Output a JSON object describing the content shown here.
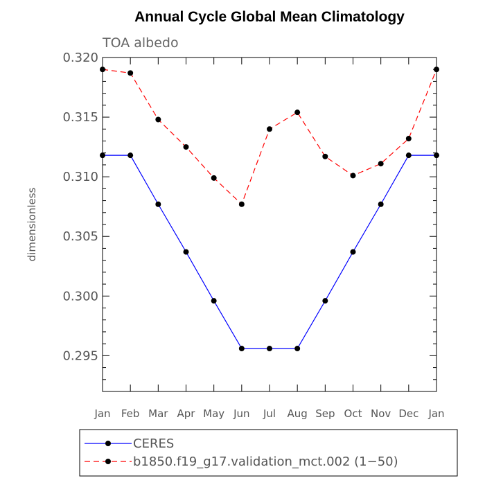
{
  "chart_data": {
    "type": "line",
    "title": "Annual Cycle Global Mean Climatology",
    "subtitle": "TOA albedo",
    "xlabel": "",
    "ylabel": "dimensionless",
    "categories": [
      "Jan",
      "Feb",
      "Mar",
      "Apr",
      "May",
      "Jun",
      "Jul",
      "Aug",
      "Sep",
      "Oct",
      "Nov",
      "Dec",
      "Jan"
    ],
    "ylim": [
      0.292,
      0.32
    ],
    "yticks": [
      "0.320",
      "0.315",
      "0.310",
      "0.305",
      "0.300",
      "0.295"
    ],
    "ytick_values": [
      0.32,
      0.315,
      0.31,
      0.305,
      0.3,
      0.295
    ],
    "legend_position": "bottom",
    "series": [
      {
        "name": "CERES",
        "color": "#0000ff",
        "line_style": "solid",
        "values": [
          0.3118,
          0.3118,
          0.3077,
          0.3037,
          0.2996,
          0.2956,
          0.2956,
          0.2956,
          0.2996,
          0.3037,
          0.3077,
          0.3118,
          0.3118
        ]
      },
      {
        "name": "b1850.f19_g17.validation_mct.002 (1−50)",
        "color": "#ff0000",
        "line_style": "dashed",
        "values": [
          0.319,
          0.3187,
          0.3148,
          0.3125,
          0.3099,
          0.3077,
          0.314,
          0.3154,
          0.3117,
          0.3101,
          0.3111,
          0.3132,
          0.319
        ]
      }
    ]
  }
}
